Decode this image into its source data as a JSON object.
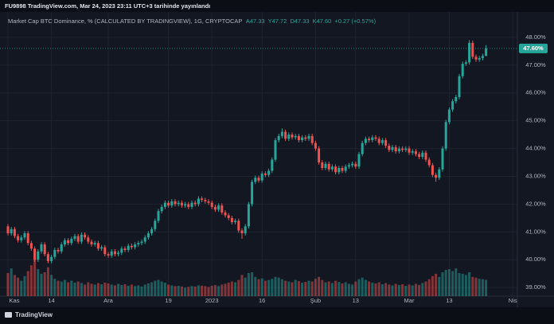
{
  "published": "FU9898 TradingView.com, Mar 24, 2023 23:11 UTC+3 tarihinde yayınlandı",
  "brand": "TradingView",
  "chart_data": {
    "type": "candlestick",
    "title": "Market Cap BTC Dominance, % (CALCULATED BY TRADINGVIEW), 1G, CRYPTOCAP",
    "ohlc_legend": [
      "A47.33",
      "Y47.72",
      "D47.33",
      "K47.60",
      "+0.27 (+0.57%)"
    ],
    "last_price_label": "47.60%",
    "up_color": "#26a69a",
    "down_color": "#ef5350",
    "grid": true,
    "xlim": [
      -2.38,
      152.38
    ],
    "xticks": [
      {
        "value": 0,
        "label": "Kas"
      },
      {
        "value": 13,
        "label": "14"
      },
      {
        "value": 30,
        "label": "Ara"
      },
      {
        "value": 48,
        "label": "19"
      },
      {
        "value": 61,
        "label": "2023"
      },
      {
        "value": 76,
        "label": "16"
      },
      {
        "value": 92,
        "label": "Şub"
      },
      {
        "value": 104,
        "label": "13"
      },
      {
        "value": 120,
        "label": "Mar"
      },
      {
        "value": 132,
        "label": "13"
      },
      {
        "value": 151,
        "label": "Nis"
      }
    ],
    "ylim": [
      38.69,
      48.77
    ],
    "yticks": [
      {
        "value": 39,
        "label": "39.00%"
      },
      {
        "value": 40,
        "label": "40.00%"
      },
      {
        "value": 41,
        "label": "41.00%"
      },
      {
        "value": 42,
        "label": "42.00%"
      },
      {
        "value": 43,
        "label": "43.00%"
      },
      {
        "value": 44,
        "label": "44.00%"
      },
      {
        "value": 45,
        "label": "45.00%"
      },
      {
        "value": 46,
        "label": "46.00%"
      },
      {
        "value": 47,
        "label": "47.00%"
      },
      {
        "value": 48,
        "label": "48.00%"
      }
    ],
    "open": [
      41.2,
      40.95,
      41.1,
      40.85,
      40.7,
      40.8,
      40.95,
      40.6,
      40.4,
      40.0,
      40.3,
      40.55,
      40.2,
      39.95,
      40.1,
      40.35,
      40.3,
      40.55,
      40.7,
      40.6,
      40.75,
      40.85,
      40.65,
      40.9,
      40.8,
      40.65,
      40.55,
      40.6,
      40.4,
      40.45,
      40.2,
      40.15,
      40.3,
      40.2,
      40.25,
      40.4,
      40.35,
      40.5,
      40.45,
      40.55,
      40.6,
      40.65,
      40.8,
      40.95,
      41.1,
      41.4,
      41.75,
      41.9,
      42.05,
      41.95,
      42.1,
      42.0,
      42.05,
      41.95,
      42.0,
      41.9,
      42.05,
      42.0,
      42.2,
      42.15,
      42.1,
      42.05,
      41.9,
      41.8,
      41.95,
      41.7,
      41.6,
      41.5,
      41.35,
      41.4,
      41.05,
      40.95,
      41.2,
      42.0,
      42.8,
      42.95,
      42.85,
      43.1,
      43.05,
      43.2,
      43.6,
      44.3,
      44.45,
      44.6,
      44.35,
      44.5,
      44.4,
      44.45,
      44.3,
      44.4,
      44.35,
      44.45,
      44.2,
      44.0,
      43.5,
      43.3,
      43.45,
      43.25,
      43.35,
      43.15,
      43.3,
      43.2,
      43.35,
      43.4,
      43.45,
      43.35,
      43.8,
      44.2,
      44.35,
      44.3,
      44.4,
      44.35,
      44.2,
      44.3,
      44.1,
      43.95,
      44.05,
      43.9,
      44.0,
      43.95,
      44.0,
      43.85,
      43.9,
      43.8,
      43.7,
      43.85,
      43.6,
      43.4,
      43.05,
      42.95,
      43.25,
      44.0,
      44.95,
      45.4,
      45.7,
      45.85,
      46.6,
      47.05,
      47.1,
      47.8,
      47.3,
      47.2,
      47.25,
      47.33
    ],
    "high": [
      41.28,
      41.18,
      41.18,
      40.93,
      40.88,
      41.03,
      41.03,
      40.68,
      40.48,
      40.38,
      40.63,
      40.63,
      40.28,
      40.18,
      40.43,
      40.43,
      40.63,
      40.78,
      40.78,
      40.83,
      40.93,
      40.93,
      40.98,
      40.98,
      40.88,
      40.73,
      40.68,
      40.68,
      40.53,
      40.53,
      40.28,
      40.38,
      40.38,
      40.33,
      40.48,
      40.48,
      40.58,
      40.58,
      40.63,
      40.68,
      40.73,
      40.88,
      41.03,
      41.18,
      41.48,
      41.83,
      41.98,
      42.13,
      42.13,
      42.18,
      42.18,
      42.13,
      42.13,
      42.08,
      42.08,
      42.13,
      42.13,
      42.28,
      42.28,
      42.23,
      42.18,
      42.13,
      41.98,
      42.03,
      42.03,
      41.78,
      41.68,
      41.58,
      41.48,
      41.48,
      41.13,
      41.28,
      42.08,
      42.88,
      43.03,
      43.03,
      43.18,
      43.18,
      43.28,
      43.68,
      44.38,
      44.53,
      44.72,
      44.68,
      44.58,
      44.58,
      44.53,
      44.53,
      44.48,
      44.48,
      44.53,
      44.53,
      44.28,
      44.08,
      43.58,
      43.53,
      43.53,
      43.43,
      43.43,
      43.38,
      43.38,
      43.43,
      43.48,
      43.53,
      43.53,
      43.88,
      44.28,
      44.43,
      44.43,
      44.48,
      44.48,
      44.43,
      44.38,
      44.38,
      44.18,
      44.13,
      44.13,
      44.08,
      44.08,
      44.08,
      44.08,
      43.98,
      43.98,
      43.88,
      43.93,
      43.93,
      43.68,
      43.48,
      43.13,
      43.33,
      44.08,
      45.03,
      45.48,
      45.78,
      45.93,
      46.68,
      47.13,
      47.18,
      47.9,
      47.88,
      47.38,
      47.33,
      47.41,
      47.72
    ],
    "low": [
      40.87,
      40.87,
      40.77,
      40.62,
      40.62,
      40.72,
      40.52,
      40.32,
      39.92,
      39.92,
      40.22,
      40.12,
      39.87,
      39.87,
      40.02,
      40.22,
      40.22,
      40.47,
      40.52,
      40.52,
      40.67,
      40.57,
      40.57,
      40.72,
      40.57,
      40.47,
      40.47,
      40.32,
      40.32,
      40.12,
      40.07,
      40.07,
      40.12,
      40.12,
      40.17,
      40.27,
      40.27,
      40.37,
      40.37,
      40.47,
      40.52,
      40.57,
      40.72,
      40.87,
      41.02,
      41.32,
      41.67,
      41.82,
      41.87,
      41.87,
      41.92,
      41.92,
      41.87,
      41.87,
      41.82,
      41.82,
      41.92,
      41.92,
      42.07,
      42.02,
      41.97,
      41.82,
      41.72,
      41.72,
      41.62,
      41.52,
      41.42,
      41.27,
      41.27,
      40.97,
      40.75,
      40.87,
      41.12,
      41.92,
      42.72,
      42.77,
      42.77,
      42.97,
      42.97,
      43.12,
      43.52,
      44.22,
      44.37,
      44.27,
      44.27,
      44.32,
      44.32,
      44.22,
      44.22,
      44.27,
      44.27,
      44.12,
      43.92,
      43.42,
      43.22,
      43.22,
      43.17,
      43.17,
      43.07,
      43.07,
      43.12,
      43.12,
      43.27,
      43.32,
      43.27,
      43.27,
      43.72,
      44.12,
      44.22,
      44.22,
      44.27,
      44.12,
      44.12,
      44.02,
      43.87,
      43.87,
      43.82,
      43.82,
      43.87,
      43.87,
      43.77,
      43.77,
      43.72,
      43.62,
      43.62,
      43.52,
      43.32,
      42.97,
      42.8,
      42.87,
      43.17,
      43.92,
      44.87,
      45.32,
      45.62,
      45.77,
      46.52,
      46.97,
      47.02,
      47.22,
      47.12,
      47.12,
      47.17,
      47.33
    ],
    "close": [
      40.95,
      41.1,
      40.85,
      40.7,
      40.8,
      40.95,
      40.6,
      40.4,
      40.0,
      40.3,
      40.55,
      40.2,
      39.95,
      40.1,
      40.35,
      40.3,
      40.55,
      40.7,
      40.6,
      40.75,
      40.85,
      40.65,
      40.9,
      40.8,
      40.65,
      40.55,
      40.6,
      40.4,
      40.45,
      40.2,
      40.15,
      40.3,
      40.2,
      40.25,
      40.4,
      40.35,
      40.5,
      40.45,
      40.55,
      40.6,
      40.65,
      40.8,
      40.95,
      41.1,
      41.4,
      41.75,
      41.9,
      42.05,
      41.95,
      42.1,
      42.0,
      42.05,
      41.95,
      42.0,
      41.9,
      42.05,
      42.0,
      42.2,
      42.15,
      42.1,
      42.05,
      41.9,
      41.8,
      41.95,
      41.7,
      41.6,
      41.5,
      41.35,
      41.4,
      41.05,
      40.95,
      41.2,
      42.0,
      42.8,
      42.95,
      42.85,
      43.1,
      43.05,
      43.2,
      43.6,
      44.3,
      44.45,
      44.6,
      44.35,
      44.5,
      44.4,
      44.45,
      44.3,
      44.4,
      44.35,
      44.45,
      44.2,
      44.0,
      43.5,
      43.3,
      43.45,
      43.25,
      43.35,
      43.15,
      43.3,
      43.2,
      43.35,
      43.4,
      43.45,
      43.35,
      43.8,
      44.2,
      44.35,
      44.3,
      44.4,
      44.35,
      44.2,
      44.3,
      44.1,
      43.95,
      44.05,
      43.9,
      44.0,
      43.95,
      44.0,
      43.85,
      43.9,
      43.8,
      43.7,
      43.85,
      43.6,
      43.4,
      43.05,
      42.95,
      43.25,
      44.0,
      44.95,
      45.4,
      45.7,
      45.85,
      46.6,
      47.05,
      47.1,
      47.8,
      47.3,
      47.2,
      47.25,
      47.33,
      47.6
    ],
    "volume": [
      60,
      72,
      55,
      48,
      40,
      52,
      65,
      80,
      95,
      70,
      58,
      62,
      75,
      55,
      45,
      40,
      38,
      42,
      36,
      40,
      35,
      38,
      34,
      30,
      36,
      32,
      30,
      34,
      31,
      35,
      33,
      30,
      28,
      32,
      29,
      31,
      27,
      30,
      26,
      28,
      25,
      30,
      33,
      36,
      40,
      42,
      38,
      35,
      30,
      28,
      26,
      27,
      25,
      22,
      24,
      26,
      25,
      28,
      27,
      26,
      24,
      27,
      29,
      26,
      30,
      32,
      35,
      38,
      36,
      42,
      55,
      48,
      60,
      62,
      50,
      44,
      46,
      40,
      42,
      45,
      50,
      48,
      44,
      40,
      38,
      36,
      42,
      39,
      35,
      37,
      40,
      38,
      45,
      50,
      42,
      36,
      38,
      34,
      40,
      37,
      33,
      36,
      32,
      30,
      38,
      44,
      48,
      42,
      38,
      35,
      33,
      36,
      31,
      34,
      30,
      28,
      32,
      29,
      31,
      27,
      30,
      28,
      32,
      29,
      34,
      38,
      44,
      52,
      58,
      50,
      62,
      68,
      70,
      65,
      72,
      60,
      58,
      55,
      62,
      50,
      48,
      45,
      44,
      42
    ]
  }
}
